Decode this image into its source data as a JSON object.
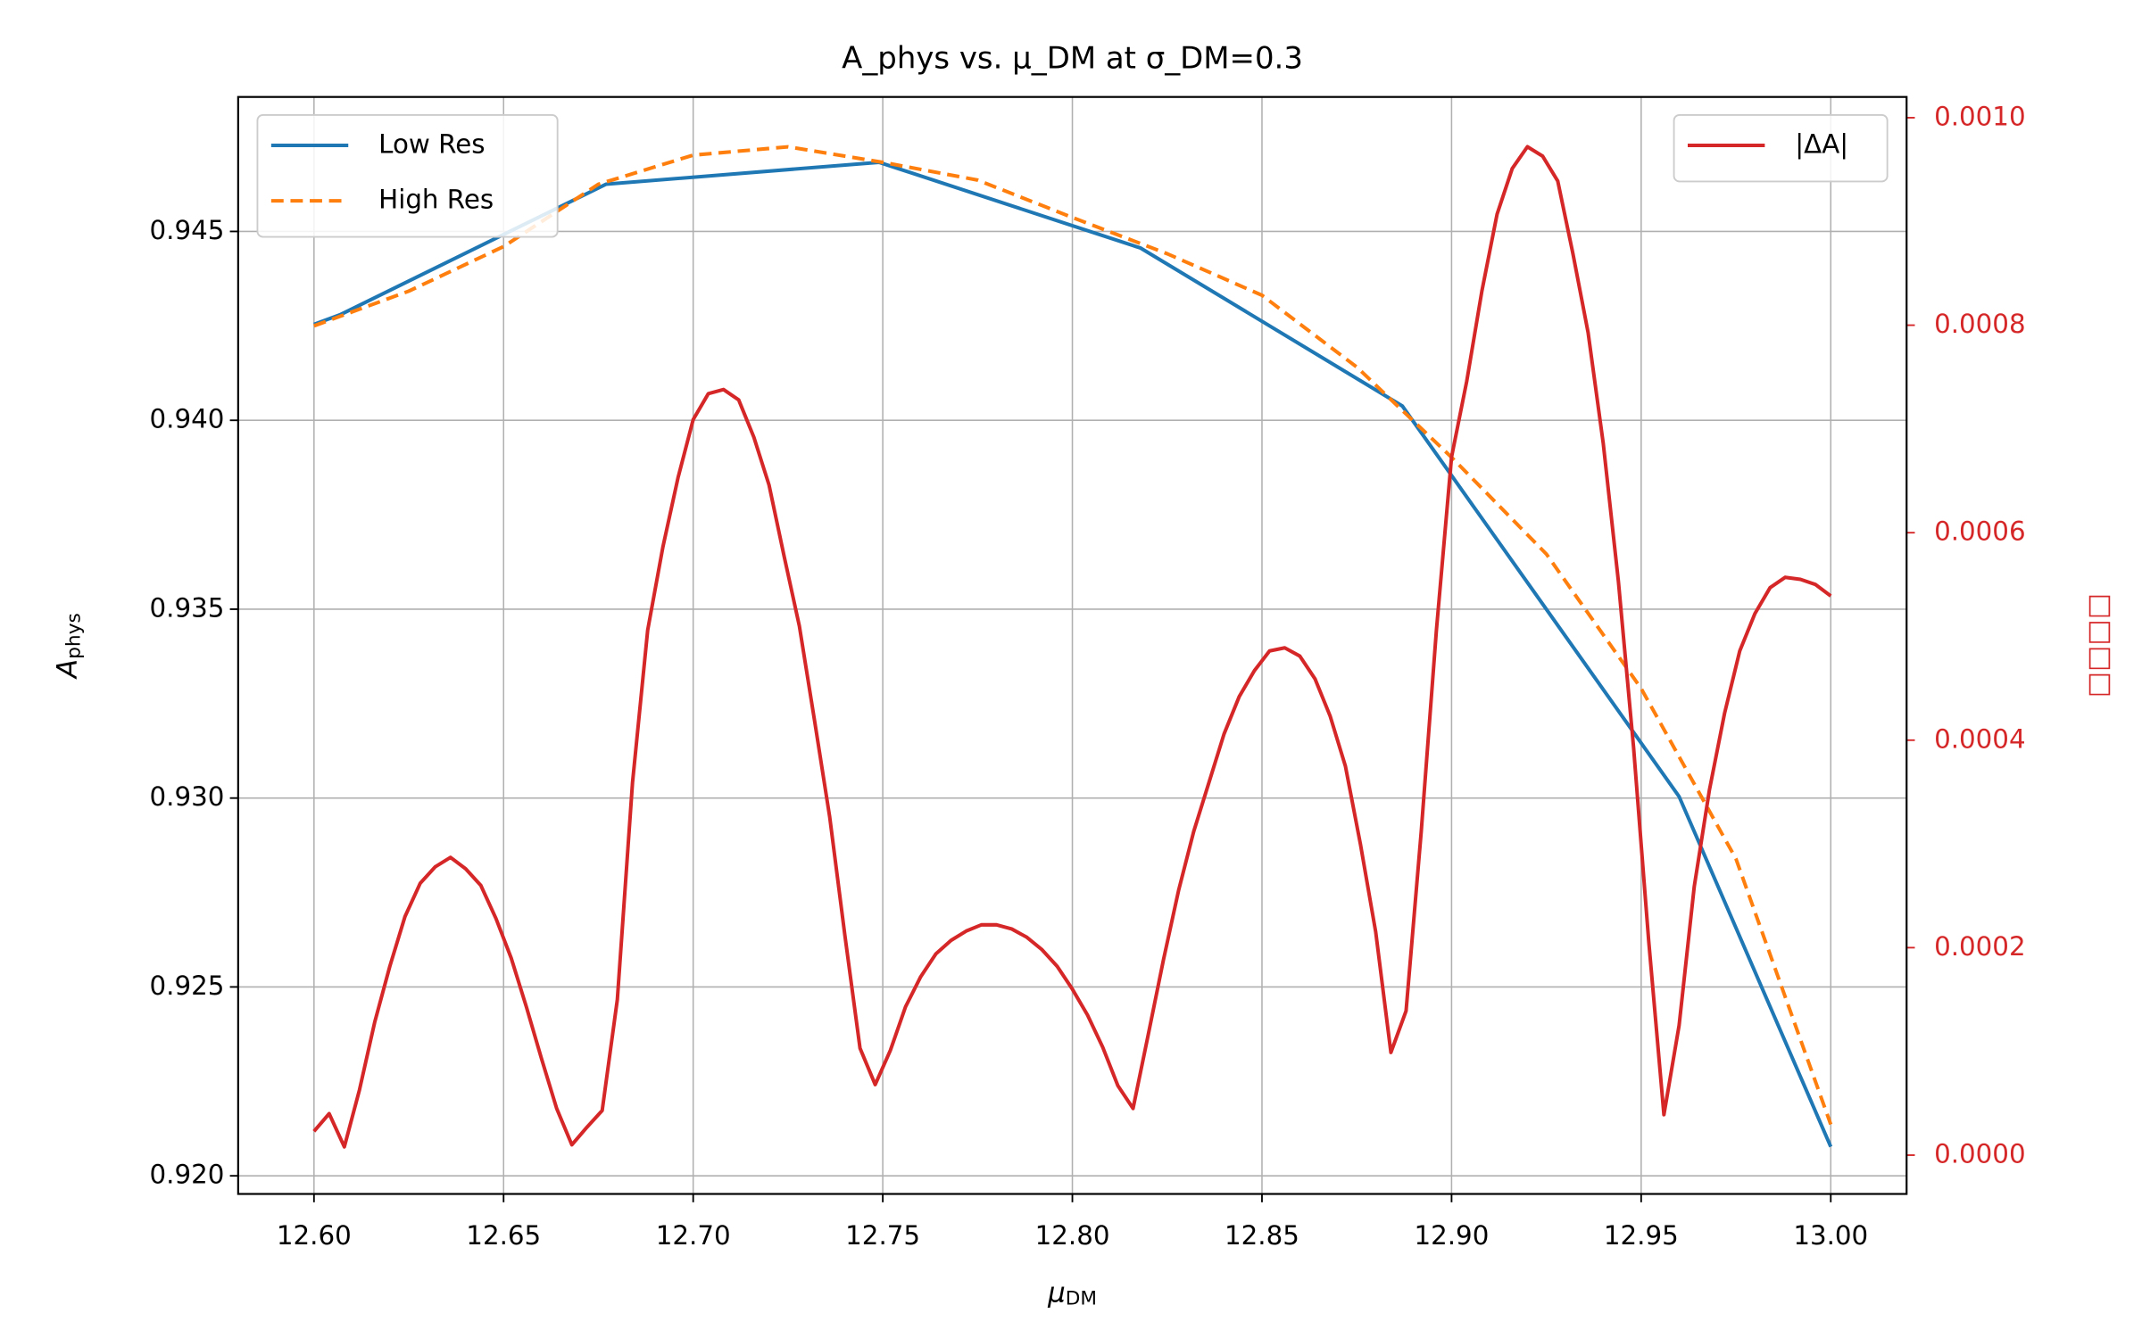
{
  "chart_data": {
    "type": "line",
    "title": "A_phys vs. μ_DM at σ_DM=0.3",
    "xlabel": {
      "symbol": "μ",
      "subscript": "DM"
    },
    "ylabel": {
      "symbol": "A",
      "subscript": "phys"
    },
    "y2label": "□□□□",
    "y2color": "#d62728",
    "grid": true,
    "legend": "upper left",
    "legend_y2": "upper right",
    "xlim": [
      12.58,
      13.02
    ],
    "ylim": [
      0.91952,
      0.94856
    ],
    "y2lim": [
      -3.74e-05,
      0.00102
    ],
    "xticks": [
      {
        "value": 12.6,
        "label": "12.60"
      },
      {
        "value": 12.65,
        "label": "12.65"
      },
      {
        "value": 12.7,
        "label": "12.70"
      },
      {
        "value": 12.75,
        "label": "12.75"
      },
      {
        "value": 12.8,
        "label": "12.80"
      },
      {
        "value": 12.85,
        "label": "12.85"
      },
      {
        "value": 12.9,
        "label": "12.90"
      },
      {
        "value": 12.95,
        "label": "12.95"
      },
      {
        "value": 13.0,
        "label": "13.00"
      }
    ],
    "yticks": [
      {
        "value": 0.92,
        "label": "0.920"
      },
      0.925,
      {
        "value": 0.93,
        "label": "0.930"
      },
      0.935,
      {
        "value": 0.94,
        "label": "0.940"
      },
      0.945
    ],
    "y2ticks": [
      {
        "value": 0,
        "label": "0.0000"
      },
      {
        "value": 0.0002,
        "label": "0.0002"
      },
      {
        "value": 0.0004,
        "label": "0.0004"
      },
      {
        "value": 0.0006,
        "label": "0.0006"
      },
      {
        "value": 0.0008,
        "label": "0.0008"
      },
      {
        "value": 0.001,
        "label": "0.0010"
      }
    ],
    "series": [
      {
        "name": "Low Res",
        "color": "#1f77b4",
        "style": "solid",
        "x": [
          12.6,
          12.607,
          12.677,
          12.749,
          12.818,
          12.887,
          12.96,
          13.0
        ],
        "values": [
          0.94254,
          0.9428,
          0.94625,
          0.94683,
          0.94456,
          0.94038,
          0.93004,
          0.92077
        ]
      },
      {
        "name": "High Res",
        "color": "#ff7f0e",
        "style": "dashed",
        "x": [
          12.6,
          12.625,
          12.65,
          12.675,
          12.7,
          12.725,
          12.75,
          12.775,
          12.8,
          12.825,
          12.85,
          12.875,
          12.9,
          12.925,
          12.95,
          12.975,
          13.0
        ],
        "values": [
          0.9425,
          0.94342,
          0.9446,
          0.94625,
          0.94702,
          0.94724,
          0.94683,
          0.94636,
          0.94537,
          0.94441,
          0.94331,
          0.94141,
          0.93902,
          0.93646,
          0.9329,
          0.92839,
          0.92136
        ]
      },
      {
        "name": "|ΔA|",
        "color": "#d62728",
        "style": "solid",
        "axis": "y2",
        "x": [
          12.6,
          12.604,
          12.608,
          12.612,
          12.616,
          12.62,
          12.624,
          12.628,
          12.632,
          12.636,
          12.64,
          12.644,
          12.648,
          12.652,
          12.656,
          12.66,
          12.664,
          12.668,
          12.672,
          12.676,
          12.68,
          12.684,
          12.688,
          12.692,
          12.696,
          12.7,
          12.704,
          12.708,
          12.712,
          12.716,
          12.72,
          12.724,
          12.728,
          12.732,
          12.736,
          12.74,
          12.744,
          12.748,
          12.752,
          12.756,
          12.76,
          12.764,
          12.768,
          12.772,
          12.776,
          12.78,
          12.784,
          12.788,
          12.792,
          12.796,
          12.8,
          12.804,
          12.808,
          12.812,
          12.816,
          12.82,
          12.824,
          12.828,
          12.832,
          12.836,
          12.84,
          12.844,
          12.848,
          12.852,
          12.856,
          12.86,
          12.864,
          12.868,
          12.872,
          12.876,
          12.88,
          12.884,
          12.888,
          12.892,
          12.896,
          12.9,
          12.904,
          12.908,
          12.912,
          12.916,
          12.92,
          12.924,
          12.928,
          12.932,
          12.936,
          12.94,
          12.944,
          12.948,
          12.952,
          12.956,
          12.96,
          12.964,
          12.968,
          12.972,
          12.976,
          12.98,
          12.984,
          12.988,
          12.992,
          12.996,
          13.0
        ],
        "values": [
          2.3e-05,
          4e-05,
          8e-06,
          6.3e-05,
          0.000128,
          0.000182,
          0.00023,
          0.000262,
          0.000278,
          0.000287,
          0.000276,
          0.00026,
          0.000228,
          0.00019,
          0.000143,
          9.3e-05,
          4.5e-05,
          1e-05,
          2.7e-05,
          4.3e-05,
          0.00015,
          0.000359,
          0.000506,
          0.000586,
          0.000653,
          0.000709,
          0.000734,
          0.000738,
          0.000728,
          0.000692,
          0.000646,
          0.000577,
          0.00051,
          0.000419,
          0.000326,
          0.000212,
          0.000103,
          6.8e-05,
          0.000101,
          0.000143,
          0.000172,
          0.000194,
          0.000207,
          0.000216,
          0.000222,
          0.000222,
          0.000218,
          0.00021,
          0.000198,
          0.000182,
          0.00016,
          0.000135,
          0.000104,
          6.7e-05,
          4.5e-05,
          0.000116,
          0.000188,
          0.000255,
          0.000312,
          0.000359,
          0.000406,
          0.000442,
          0.000467,
          0.000486,
          0.000489,
          0.000481,
          0.000459,
          0.000423,
          0.000375,
          0.000299,
          0.000215,
          9.9e-05,
          0.000139,
          0.000312,
          0.000506,
          0.000673,
          0.000746,
          0.000833,
          0.000907,
          0.000951,
          0.000972,
          0.000963,
          0.000939,
          0.000869,
          0.000793,
          0.000686,
          0.000553,
          0.000393,
          0.000206,
          3.9e-05,
          0.000125,
          0.000259,
          0.000352,
          0.000426,
          0.000486,
          0.000522,
          0.000547,
          0.000557,
          0.000555,
          0.00055,
          0.000539
        ]
      }
    ]
  }
}
